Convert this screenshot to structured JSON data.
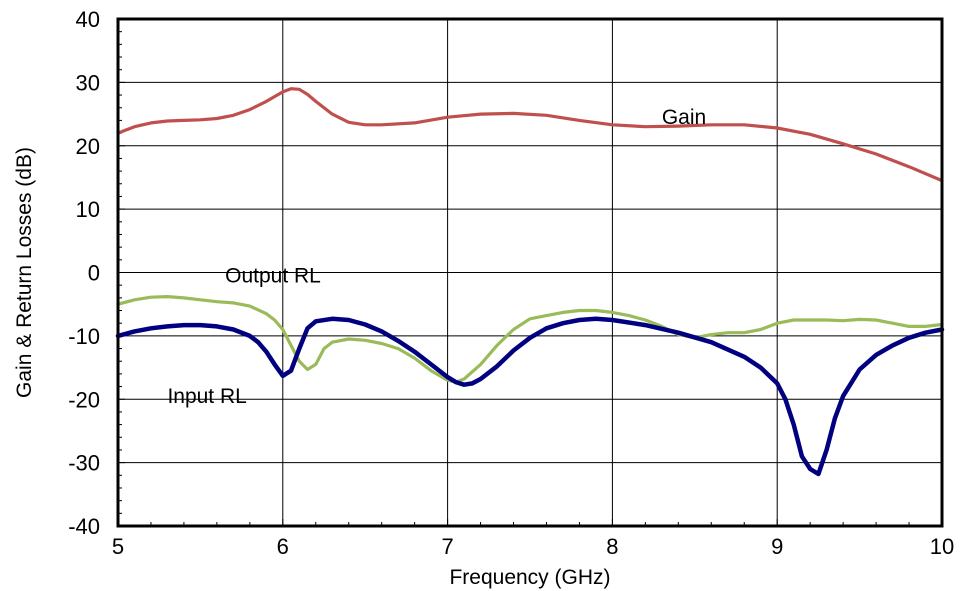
{
  "chart_data": {
    "type": "line",
    "title": "",
    "xlabel": "Frequency (GHz)",
    "ylabel": "Gain & Return Losses (dB)",
    "xlim": [
      5,
      10
    ],
    "ylim": [
      -40,
      40
    ],
    "x_ticks": [
      5,
      6,
      7,
      8,
      9,
      10
    ],
    "y_ticks": [
      -40,
      -30,
      -20,
      -10,
      0,
      10,
      20,
      30,
      40
    ],
    "grid": true,
    "legend": "none",
    "series": [
      {
        "name": "Gain",
        "color": "#c0504d",
        "x": [
          5.0,
          5.1,
          5.2,
          5.3,
          5.4,
          5.5,
          5.6,
          5.7,
          5.8,
          5.9,
          6.0,
          6.05,
          6.1,
          6.15,
          6.2,
          6.3,
          6.4,
          6.5,
          6.6,
          6.8,
          7.0,
          7.2,
          7.4,
          7.6,
          7.8,
          8.0,
          8.2,
          8.4,
          8.6,
          8.8,
          9.0,
          9.2,
          9.4,
          9.6,
          9.8,
          10.0
        ],
        "y": [
          22.0,
          23.0,
          23.6,
          23.9,
          24.0,
          24.1,
          24.3,
          24.8,
          25.7,
          27.0,
          28.5,
          29.0,
          28.9,
          28.1,
          27.0,
          25.0,
          23.7,
          23.3,
          23.3,
          23.6,
          24.5,
          25.0,
          25.1,
          24.8,
          24.0,
          23.3,
          23.0,
          23.1,
          23.3,
          23.3,
          22.8,
          21.8,
          20.3,
          18.7,
          16.7,
          14.5
        ]
      },
      {
        "name": "Output RL",
        "color": "#9bbb59",
        "x": [
          5.0,
          5.1,
          5.2,
          5.3,
          5.4,
          5.5,
          5.6,
          5.7,
          5.8,
          5.9,
          5.95,
          6.0,
          6.05,
          6.1,
          6.15,
          6.2,
          6.25,
          6.3,
          6.4,
          6.5,
          6.6,
          6.7,
          6.8,
          6.9,
          7.0,
          7.05,
          7.1,
          7.2,
          7.3,
          7.4,
          7.5,
          7.6,
          7.7,
          7.8,
          7.9,
          8.0,
          8.1,
          8.2,
          8.3,
          8.4,
          8.5,
          8.6,
          8.7,
          8.8,
          8.9,
          9.0,
          9.1,
          9.2,
          9.3,
          9.4,
          9.5,
          9.6,
          9.7,
          9.8,
          9.9,
          10.0
        ],
        "y": [
          -5.0,
          -4.3,
          -3.9,
          -3.8,
          -4.0,
          -4.3,
          -4.6,
          -4.8,
          -5.3,
          -6.5,
          -7.5,
          -9.0,
          -11.5,
          -14.0,
          -15.3,
          -14.5,
          -12.0,
          -11.0,
          -10.5,
          -10.7,
          -11.2,
          -12.0,
          -13.5,
          -15.5,
          -17.0,
          -17.3,
          -16.8,
          -14.5,
          -11.5,
          -9.0,
          -7.3,
          -6.8,
          -6.3,
          -6.0,
          -6.0,
          -6.3,
          -6.8,
          -7.5,
          -8.5,
          -9.8,
          -10.3,
          -9.8,
          -9.5,
          -9.5,
          -9.0,
          -8.0,
          -7.5,
          -7.5,
          -7.5,
          -7.6,
          -7.4,
          -7.5,
          -8.0,
          -8.5,
          -8.5,
          -8.2
        ]
      },
      {
        "name": "Input RL",
        "color": "#000080",
        "x": [
          5.0,
          5.1,
          5.2,
          5.3,
          5.4,
          5.5,
          5.6,
          5.7,
          5.8,
          5.85,
          5.9,
          5.95,
          6.0,
          6.05,
          6.1,
          6.15,
          6.2,
          6.3,
          6.4,
          6.5,
          6.6,
          6.7,
          6.8,
          6.9,
          7.0,
          7.05,
          7.1,
          7.15,
          7.2,
          7.3,
          7.4,
          7.5,
          7.6,
          7.7,
          7.8,
          7.9,
          8.0,
          8.2,
          8.4,
          8.6,
          8.8,
          8.9,
          9.0,
          9.05,
          9.1,
          9.15,
          9.2,
          9.25,
          9.3,
          9.35,
          9.4,
          9.5,
          9.6,
          9.7,
          9.8,
          9.9,
          10.0
        ],
        "y": [
          -10.0,
          -9.3,
          -8.8,
          -8.5,
          -8.3,
          -8.3,
          -8.5,
          -9.0,
          -10.0,
          -11.0,
          -12.5,
          -14.5,
          -16.3,
          -15.5,
          -12.0,
          -8.8,
          -7.7,
          -7.3,
          -7.5,
          -8.2,
          -9.3,
          -10.8,
          -12.5,
          -14.5,
          -16.5,
          -17.3,
          -17.7,
          -17.5,
          -16.8,
          -14.8,
          -12.3,
          -10.3,
          -8.8,
          -8.0,
          -7.5,
          -7.3,
          -7.5,
          -8.3,
          -9.5,
          -11.0,
          -13.3,
          -15.0,
          -17.5,
          -20.0,
          -24.0,
          -29.0,
          -31.0,
          -31.8,
          -28.0,
          -23.0,
          -19.5,
          -15.3,
          -13.0,
          -11.5,
          -10.3,
          -9.5,
          -9.0
        ]
      }
    ],
    "annotations": [
      {
        "text": "Gain",
        "x": 8.3,
        "y": 24.5
      },
      {
        "text": "Output RL",
        "x": 5.65,
        "y": -0.5
      },
      {
        "text": "Input RL",
        "x": 5.3,
        "y": -19.5
      }
    ]
  }
}
